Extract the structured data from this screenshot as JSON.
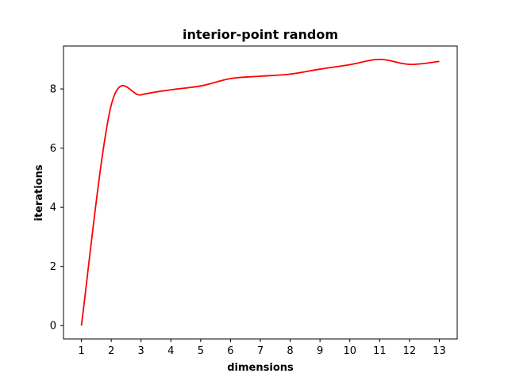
{
  "chart_data": {
    "type": "line",
    "title": "interior-point random",
    "xlabel": "dimensions",
    "ylabel": "iterations",
    "xlim": [
      0.4,
      13.6
    ],
    "ylim": [
      -0.45,
      9.45
    ],
    "x_ticks": [
      1,
      2,
      3,
      4,
      5,
      6,
      7,
      8,
      9,
      10,
      11,
      12,
      13
    ],
    "y_ticks": [
      0,
      2,
      4,
      6,
      8
    ],
    "grid": false,
    "series": [
      {
        "color": "#ff0000",
        "x": [
          1,
          2,
          3,
          4,
          5,
          6,
          7,
          8,
          9,
          10,
          11,
          12,
          13
        ],
        "y": [
          0,
          7.45,
          7.8,
          7.97,
          8.1,
          8.35,
          8.43,
          8.5,
          8.67,
          8.82,
          9.0,
          8.83,
          8.93
        ]
      }
    ]
  }
}
